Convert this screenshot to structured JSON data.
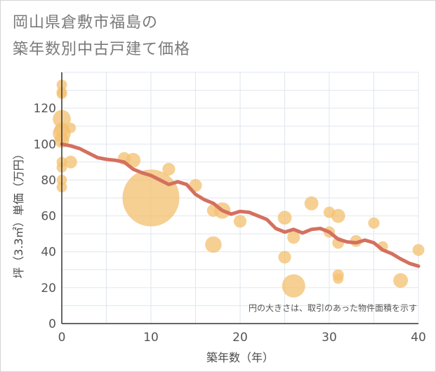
{
  "title_lines": [
    "岡山県倉敷市福島の",
    "築年数別中古戸建て価格"
  ],
  "chart_data": {
    "type": "scatter",
    "xlabel": "築年数（年）",
    "ylabel": "坪（3.3㎡）単価（万円）",
    "xlim": [
      0,
      40
    ],
    "ylim": [
      0,
      140
    ],
    "xticks": [
      0,
      10,
      20,
      30,
      40
    ],
    "yticks": [
      0,
      20,
      40,
      60,
      80,
      100,
      120
    ],
    "grid": true,
    "note": "円の大きさは、取引のあった物件面積を示す",
    "colors": {
      "bubble": "#f3c173",
      "line": "#d4705f",
      "grid": "#dfe6ee",
      "axis": "#333333"
    },
    "bubbles": [
      {
        "x": 0,
        "y": 133,
        "size": 1
      },
      {
        "x": 0,
        "y": 129,
        "size": 1
      },
      {
        "x": 0,
        "y": 128,
        "size": 1
      },
      {
        "x": 0,
        "y": 114,
        "size": 3
      },
      {
        "x": 0,
        "y": 108,
        "size": 2
      },
      {
        "x": 0,
        "y": 106,
        "size": 3
      },
      {
        "x": 0,
        "y": 102,
        "size": 2
      },
      {
        "x": 0,
        "y": 90,
        "size": 1
      },
      {
        "x": 0,
        "y": 87,
        "size": 1
      },
      {
        "x": 0,
        "y": 80,
        "size": 1
      },
      {
        "x": 0,
        "y": 76,
        "size": 1
      },
      {
        "x": 1,
        "y": 109,
        "size": 1
      },
      {
        "x": 1,
        "y": 90,
        "size": 1.5
      },
      {
        "x": 7,
        "y": 92,
        "size": 1.5
      },
      {
        "x": 8,
        "y": 91,
        "size": 2
      },
      {
        "x": 10,
        "y": 70,
        "size": 30
      },
      {
        "x": 12,
        "y": 86,
        "size": 1.5
      },
      {
        "x": 15,
        "y": 77,
        "size": 1.5
      },
      {
        "x": 17,
        "y": 63,
        "size": 1.5
      },
      {
        "x": 17,
        "y": 44,
        "size": 2.5
      },
      {
        "x": 18,
        "y": 63,
        "size": 2.5
      },
      {
        "x": 20,
        "y": 57,
        "size": 1.5
      },
      {
        "x": 25,
        "y": 59,
        "size": 1.8
      },
      {
        "x": 25,
        "y": 37,
        "size": 1.5
      },
      {
        "x": 26,
        "y": 48,
        "size": 1.5
      },
      {
        "x": 26,
        "y": 21,
        "size": 5
      },
      {
        "x": 28,
        "y": 67,
        "size": 1.8
      },
      {
        "x": 30,
        "y": 62,
        "size": 1.2
      },
      {
        "x": 30,
        "y": 51,
        "size": 1.2
      },
      {
        "x": 31,
        "y": 60,
        "size": 1.8
      },
      {
        "x": 31,
        "y": 45,
        "size": 1.3
      },
      {
        "x": 31,
        "y": 27,
        "size": 1.2
      },
      {
        "x": 31,
        "y": 25,
        "size": 1
      },
      {
        "x": 33,
        "y": 46,
        "size": 1.3
      },
      {
        "x": 35,
        "y": 56,
        "size": 1.2
      },
      {
        "x": 36,
        "y": 43,
        "size": 1
      },
      {
        "x": 38,
        "y": 24,
        "size": 2
      },
      {
        "x": 40,
        "y": 41,
        "size": 1.3
      }
    ],
    "trend": [
      [
        0,
        100
      ],
      [
        1,
        99
      ],
      [
        2,
        97.5
      ],
      [
        3,
        95
      ],
      [
        4,
        92.5
      ],
      [
        5,
        91.5
      ],
      [
        6,
        91
      ],
      [
        7,
        90
      ],
      [
        8,
        86
      ],
      [
        9,
        84
      ],
      [
        10,
        82.5
      ],
      [
        11,
        80
      ],
      [
        12,
        77.5
      ],
      [
        13,
        79
      ],
      [
        14,
        77.5
      ],
      [
        15,
        72
      ],
      [
        16,
        69
      ],
      [
        17,
        67
      ],
      [
        18,
        63
      ],
      [
        19,
        61
      ],
      [
        20,
        62.5
      ],
      [
        21,
        62
      ],
      [
        22,
        60
      ],
      [
        23,
        58
      ],
      [
        24,
        53
      ],
      [
        25,
        51
      ],
      [
        26,
        52.5
      ],
      [
        27,
        50.5
      ],
      [
        28,
        52.5
      ],
      [
        29,
        53
      ],
      [
        30,
        51
      ],
      [
        31,
        47
      ],
      [
        32,
        45.5
      ],
      [
        33,
        45
      ],
      [
        34,
        46.5
      ],
      [
        35,
        45
      ],
      [
        36,
        41
      ],
      [
        37,
        39
      ],
      [
        38,
        36
      ],
      [
        39,
        33.5
      ],
      [
        40,
        32
      ]
    ]
  }
}
